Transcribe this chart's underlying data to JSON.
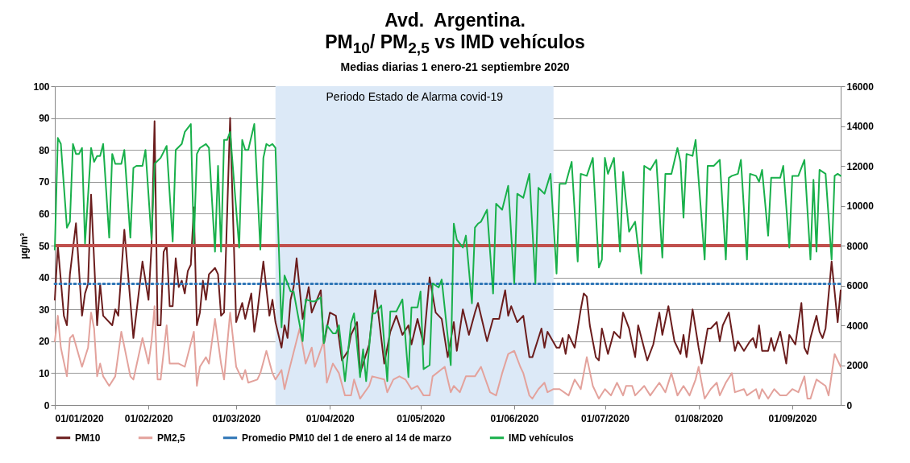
{
  "chart_data": {
    "type": "line",
    "title": "Avd.  Argentina.\nPM$_{10}$/ PM$_{2,5}$ vs IMD vehículos",
    "subtitle": "Medias diarias 1 enero-21 septiembre 2020",
    "ylabel": "µg/m³",
    "xlim": [
      "2020-01-01",
      "2020-09-17"
    ],
    "xticks": [
      {
        "value": "2020-01-01",
        "label": "01/01/2020"
      },
      {
        "value": "2020-02-01",
        "label": "01/02/2020"
      },
      {
        "value": "2020-03-01",
        "label": "01/03/2020"
      },
      {
        "value": "2020-04-01",
        "label": "01/04/2020"
      },
      {
        "value": "2020-05-01",
        "label": "01/05/2020"
      },
      {
        "value": "2020-06-01",
        "label": "01/06/2020"
      },
      {
        "value": "2020-07-01",
        "label": "01/07/2020"
      },
      {
        "value": "2020-08-01",
        "label": "01/08/2020"
      },
      {
        "value": "2020-09-01",
        "label": "01/09/2020"
      }
    ],
    "ylim": [
      0,
      100
    ],
    "yticks": [
      0,
      10,
      20,
      30,
      40,
      50,
      60,
      70,
      80,
      90,
      100
    ],
    "y2lim": [
      0,
      16000
    ],
    "y2ticks": [
      0,
      2000,
      4000,
      6000,
      8000,
      10000,
      12000,
      14000,
      16000
    ],
    "grid": "y",
    "legend": "bottom",
    "bands": [
      {
        "axis": "x",
        "from": "2020-03-14",
        "to": "2020-06-14",
        "label": "Periodo  Estado de Alarma covid-19",
        "color": "#dce9f7"
      }
    ],
    "ref_lines": [
      {
        "axis": "y",
        "value": 50,
        "color": "#c0504d"
      }
    ],
    "series": [
      {
        "name": "PM10",
        "color": "#6b1d1d",
        "x": [
          "2020-01-01",
          "2020-01-02",
          "2020-01-04",
          "2020-01-05",
          "2020-01-06",
          "2020-01-08",
          "2020-01-10",
          "2020-01-11",
          "2020-01-12",
          "2020-01-13",
          "2020-01-15",
          "2020-01-16",
          "2020-01-17",
          "2020-01-20",
          "2020-01-21",
          "2020-01-22",
          "2020-01-24",
          "2020-01-27",
          "2020-01-30",
          "2020-02-01",
          "2020-02-02",
          "2020-02-03",
          "2020-02-04",
          "2020-02-05",
          "2020-02-06",
          "2020-02-07",
          "2020-02-08",
          "2020-02-09",
          "2020-02-10",
          "2020-02-11",
          "2020-02-12",
          "2020-02-13",
          "2020-02-14",
          "2020-02-15",
          "2020-02-16",
          "2020-02-17",
          "2020-02-18",
          "2020-02-19",
          "2020-02-20",
          "2020-02-21",
          "2020-02-23",
          "2020-02-24",
          "2020-02-25",
          "2020-02-26",
          "2020-02-28",
          "2020-03-01",
          "2020-03-03",
          "2020-03-04",
          "2020-03-06",
          "2020-03-07",
          "2020-03-08",
          "2020-03-10",
          "2020-03-12",
          "2020-03-13",
          "2020-03-14",
          "2020-03-16",
          "2020-03-17",
          "2020-03-18",
          "2020-03-19",
          "2020-03-20",
          "2020-03-21",
          "2020-03-23",
          "2020-03-25",
          "2020-03-26",
          "2020-03-29",
          "2020-03-30",
          "2020-04-01",
          "2020-04-03",
          "2020-04-05",
          "2020-04-07",
          "2020-04-08",
          "2020-04-10",
          "2020-04-11",
          "2020-04-14",
          "2020-04-16",
          "2020-04-17",
          "2020-04-19",
          "2020-04-21",
          "2020-04-23",
          "2020-04-25",
          "2020-04-27",
          "2020-04-28",
          "2020-04-30",
          "2020-05-02",
          "2020-05-04",
          "2020-05-06",
          "2020-05-08",
          "2020-05-10",
          "2020-05-12",
          "2020-05-13",
          "2020-05-15",
          "2020-05-17",
          "2020-05-19",
          "2020-05-20",
          "2020-05-23",
          "2020-05-25",
          "2020-05-27",
          "2020-05-29",
          "2020-05-30",
          "2020-05-31",
          "2020-06-02",
          "2020-06-04",
          "2020-06-06",
          "2020-06-07",
          "2020-06-10",
          "2020-06-11",
          "2020-06-12",
          "2020-06-15",
          "2020-06-16",
          "2020-06-17",
          "2020-06-18",
          "2020-06-19",
          "2020-06-21",
          "2020-06-23",
          "2020-06-24",
          "2020-06-25",
          "2020-06-26",
          "2020-06-28",
          "2020-06-29",
          "2020-06-30",
          "2020-07-02",
          "2020-07-04",
          "2020-07-06",
          "2020-07-07",
          "2020-07-09",
          "2020-07-11",
          "2020-07-12",
          "2020-07-15",
          "2020-07-17",
          "2020-07-19",
          "2020-07-20",
          "2020-07-22",
          "2020-07-24",
          "2020-07-26",
          "2020-07-27",
          "2020-07-28",
          "2020-07-30",
          "2020-08-01",
          "2020-08-02",
          "2020-08-04",
          "2020-08-05",
          "2020-08-07",
          "2020-08-08",
          "2020-08-09",
          "2020-08-10",
          "2020-08-11",
          "2020-08-13",
          "2020-08-14",
          "2020-08-16",
          "2020-08-18",
          "2020-08-19",
          "2020-08-20",
          "2020-08-21",
          "2020-08-22",
          "2020-08-24",
          "2020-08-25",
          "2020-08-26",
          "2020-08-28",
          "2020-08-30",
          "2020-08-31",
          "2020-09-02",
          "2020-09-04",
          "2020-09-05",
          "2020-09-06",
          "2020-09-07",
          "2020-09-09",
          "2020-09-10",
          "2020-09-11",
          "2020-09-12",
          "2020-09-14",
          "2020-09-16",
          "2020-09-17"
        ],
        "values": [
          33,
          50,
          28,
          25,
          41,
          57,
          28,
          35,
          38,
          66,
          25,
          38,
          28,
          25,
          30,
          28,
          55,
          21,
          45,
          33,
          50,
          89,
          25,
          25,
          48,
          50,
          31,
          31,
          46,
          37,
          39,
          35,
          42,
          44,
          62,
          25,
          29,
          39,
          33,
          41,
          43,
          41,
          28,
          29,
          90,
          26,
          32,
          27,
          35,
          23,
          29,
          45,
          28,
          33,
          26,
          18,
          25,
          21,
          33,
          37,
          46,
          27,
          37,
          29,
          36,
          19,
          29,
          28,
          14,
          17,
          22,
          26,
          10,
          19,
          36,
          29,
          13,
          23,
          28,
          22,
          25,
          19,
          27,
          19,
          40,
          29,
          27,
          15,
          26,
          17,
          30,
          22,
          29,
          32,
          20,
          27,
          27,
          36,
          28,
          31,
          26,
          28,
          15,
          15,
          24,
          18,
          23,
          18,
          18,
          21,
          16,
          22,
          18,
          30,
          35,
          34,
          25,
          15,
          14,
          24,
          16,
          23,
          21,
          29,
          24,
          15,
          25,
          14,
          19,
          29,
          22,
          31,
          20,
          16,
          22,
          15,
          30,
          18,
          13,
          24,
          24,
          26,
          20,
          25,
          27,
          29,
          17,
          20,
          17,
          20,
          21,
          18,
          25,
          17,
          17,
          21,
          17,
          23,
          13,
          22,
          19,
          32,
          18,
          16,
          21,
          28,
          23,
          21,
          24,
          45,
          26,
          36
        ]
      },
      {
        "name": "PM2,5",
        "color": "#e3a29c",
        "x": [
          "2020-01-01",
          "2020-01-02",
          "2020-01-03",
          "2020-01-05",
          "2020-01-06",
          "2020-01-07",
          "2020-01-10",
          "2020-01-12",
          "2020-01-13",
          "2020-01-14",
          "2020-01-15",
          "2020-01-16",
          "2020-01-17",
          "2020-01-19",
          "2020-01-21",
          "2020-01-23",
          "2020-01-26",
          "2020-01-27",
          "2020-01-30",
          "2020-02-01",
          "2020-02-02",
          "2020-02-03",
          "2020-02-04",
          "2020-02-05",
          "2020-02-07",
          "2020-02-08",
          "2020-02-11",
          "2020-02-13",
          "2020-02-16",
          "2020-02-17",
          "2020-02-18",
          "2020-02-20",
          "2020-02-21",
          "2020-02-23",
          "2020-02-25",
          "2020-02-26",
          "2020-02-28",
          "2020-03-01",
          "2020-03-03",
          "2020-03-04",
          "2020-03-05",
          "2020-03-08",
          "2020-03-09",
          "2020-03-11",
          "2020-03-13",
          "2020-03-14",
          "2020-03-16",
          "2020-03-17",
          "2020-03-18",
          "2020-03-22",
          "2020-03-24",
          "2020-03-26",
          "2020-03-27",
          "2020-03-30",
          "2020-03-31",
          "2020-04-02",
          "2020-04-04",
          "2020-04-06",
          "2020-04-08",
          "2020-04-09",
          "2020-04-11",
          "2020-04-14",
          "2020-04-15",
          "2020-04-19",
          "2020-04-20",
          "2020-04-22",
          "2020-04-24",
          "2020-04-26",
          "2020-04-28",
          "2020-04-30",
          "2020-05-02",
          "2020-05-04",
          "2020-05-05",
          "2020-05-09",
          "2020-05-11",
          "2020-05-12",
          "2020-05-14",
          "2020-05-16",
          "2020-05-19",
          "2020-05-21",
          "2020-05-24",
          "2020-05-26",
          "2020-05-28",
          "2020-05-30",
          "2020-06-01",
          "2020-06-03",
          "2020-06-04",
          "2020-06-06",
          "2020-06-07",
          "2020-06-09",
          "2020-06-11",
          "2020-06-12",
          "2020-06-14",
          "2020-06-16",
          "2020-06-19",
          "2020-06-21",
          "2020-06-23",
          "2020-06-25",
          "2020-06-27",
          "2020-06-29",
          "2020-07-01",
          "2020-07-03",
          "2020-07-05",
          "2020-07-07",
          "2020-07-08",
          "2020-07-10",
          "2020-07-11",
          "2020-07-14",
          "2020-07-16",
          "2020-07-19",
          "2020-07-21",
          "2020-07-23",
          "2020-07-25",
          "2020-07-27",
          "2020-07-29",
          "2020-07-31",
          "2020-08-01",
          "2020-08-03",
          "2020-08-05",
          "2020-08-07",
          "2020-08-08",
          "2020-08-10",
          "2020-08-12",
          "2020-08-13",
          "2020-08-16",
          "2020-08-17",
          "2020-08-20",
          "2020-08-21",
          "2020-08-22",
          "2020-08-24",
          "2020-08-26",
          "2020-08-28",
          "2020-08-30",
          "2020-09-01",
          "2020-09-03",
          "2020-09-05",
          "2020-09-06",
          "2020-09-07",
          "2020-09-09",
          "2020-09-12",
          "2020-09-13",
          "2020-09-15",
          "2020-09-17"
        ],
        "values": [
          20,
          28,
          18,
          9,
          21,
          22,
          12,
          18,
          29,
          24,
          9,
          13,
          9,
          6,
          9,
          23,
          9,
          8,
          21,
          13,
          20,
          31,
          8,
          8,
          25,
          13,
          13,
          12,
          23,
          6,
          12,
          15,
          13,
          27,
          13,
          8,
          29,
          12,
          8,
          11,
          7,
          8,
          10,
          17,
          10,
          8,
          11,
          5,
          9,
          24,
          13,
          18,
          12,
          20,
          7,
          13,
          10,
          3,
          3,
          8,
          2,
          6,
          9,
          8,
          4,
          8,
          9,
          8,
          5,
          6,
          3,
          3,
          9,
          12,
          4,
          6,
          4,
          9,
          9,
          12,
          4,
          3,
          10,
          16,
          17,
          12,
          10,
          3,
          2,
          5,
          7,
          4,
          5,
          5,
          3,
          8,
          5,
          15,
          6,
          2,
          5,
          3,
          7,
          3,
          6,
          6,
          3,
          6,
          3,
          7,
          4,
          10,
          3,
          6,
          3,
          8,
          12,
          2,
          5,
          7,
          3,
          7,
          10,
          4,
          5,
          3,
          5,
          2,
          5,
          2,
          5,
          3,
          3,
          5,
          4,
          9,
          2,
          2,
          8,
          6,
          3,
          16,
          12
        ]
      },
      {
        "name": "Promedio PM10 del 1 de enero al 14 de marzo",
        "color": "#2e75b6",
        "type": "line",
        "line_style": "dotted",
        "x": [
          "2020-01-01",
          "2020-09-17"
        ],
        "values": [
          38,
          38
        ]
      },
      {
        "name": "IMD vehículos",
        "color": "#19b04b",
        "axis": "y2",
        "x": [
          "2020-01-01",
          "2020-01-02",
          "2020-01-03",
          "2020-01-05",
          "2020-01-06",
          "2020-01-07",
          "2020-01-08",
          "2020-01-09",
          "2020-01-10",
          "2020-01-11",
          "2020-01-13",
          "2020-01-14",
          "2020-01-15",
          "2020-01-16",
          "2020-01-17",
          "2020-01-19",
          "2020-01-20",
          "2020-01-21",
          "2020-01-23",
          "2020-01-24",
          "2020-01-26",
          "2020-01-27",
          "2020-01-28",
          "2020-01-30",
          "2020-01-31",
          "2020-02-02",
          "2020-02-03",
          "2020-02-05",
          "2020-02-07",
          "2020-02-09",
          "2020-02-10",
          "2020-02-12",
          "2020-02-13",
          "2020-02-15",
          "2020-02-16",
          "2020-02-17",
          "2020-02-18",
          "2020-02-20",
          "2020-02-21",
          "2020-02-23",
          "2020-02-24",
          "2020-02-25",
          "2020-02-26",
          "2020-02-27",
          "2020-02-28",
          "2020-03-02",
          "2020-03-03",
          "2020-03-04",
          "2020-03-05",
          "2020-03-07",
          "2020-03-09",
          "2020-03-10",
          "2020-03-11",
          "2020-03-12",
          "2020-03-13",
          "2020-03-14",
          "2020-03-16",
          "2020-03-17",
          "2020-03-19",
          "2020-03-20",
          "2020-03-23",
          "2020-03-24",
          "2020-03-26",
          "2020-03-27",
          "2020-03-29",
          "2020-03-30",
          "2020-03-31",
          "2020-04-02",
          "2020-04-03",
          "2020-04-04",
          "2020-04-06",
          "2020-04-08",
          "2020-04-09",
          "2020-04-11",
          "2020-04-12",
          "2020-04-13",
          "2020-04-15",
          "2020-04-16",
          "2020-04-18",
          "2020-04-20",
          "2020-04-21",
          "2020-04-23",
          "2020-04-25",
          "2020-04-27",
          "2020-04-28",
          "2020-04-30",
          "2020-05-01",
          "2020-05-02",
          "2020-05-04",
          "2020-05-05",
          "2020-05-07",
          "2020-05-08",
          "2020-05-11",
          "2020-05-12",
          "2020-05-13",
          "2020-05-15",
          "2020-05-16",
          "2020-05-18",
          "2020-05-19",
          "2020-05-20",
          "2020-05-21",
          "2020-05-23",
          "2020-05-25",
          "2020-05-26",
          "2020-05-28",
          "2020-05-30",
          "2020-06-01",
          "2020-06-02",
          "2020-06-04",
          "2020-06-06",
          "2020-06-08",
          "2020-06-09",
          "2020-06-11",
          "2020-06-13",
          "2020-06-15",
          "2020-06-16",
          "2020-06-18",
          "2020-06-20",
          "2020-06-22",
          "2020-06-23",
          "2020-06-25",
          "2020-06-27",
          "2020-06-29",
          "2020-06-30",
          "2020-07-01",
          "2020-07-02",
          "2020-07-04",
          "2020-07-06",
          "2020-07-07",
          "2020-07-09",
          "2020-07-11",
          "2020-07-13",
          "2020-07-14",
          "2020-07-16",
          "2020-07-18",
          "2020-07-20",
          "2020-07-21",
          "2020-07-23",
          "2020-07-25",
          "2020-07-26",
          "2020-07-27",
          "2020-07-28",
          "2020-07-30",
          "2020-07-31",
          "2020-08-03",
          "2020-08-04",
          "2020-08-06",
          "2020-08-08",
          "2020-08-10",
          "2020-08-11",
          "2020-08-12",
          "2020-08-14",
          "2020-08-15",
          "2020-08-17",
          "2020-08-18",
          "2020-08-20",
          "2020-08-21",
          "2020-08-22",
          "2020-08-24",
          "2020-08-25",
          "2020-08-26",
          "2020-08-28",
          "2020-08-29",
          "2020-08-31",
          "2020-09-01",
          "2020-09-03",
          "2020-09-05",
          "2020-09-07",
          "2020-09-08",
          "2020-09-09",
          "2020-09-10",
          "2020-09-12",
          "2020-09-14",
          "2020-09-15",
          "2020-09-16",
          "2020-09-17"
        ],
        "values": [
          7800,
          13400,
          13100,
          8900,
          9200,
          13100,
          12600,
          12600,
          12900,
          8100,
          12900,
          12200,
          12500,
          12500,
          13100,
          8400,
          12600,
          12100,
          12100,
          12800,
          8400,
          11900,
          12000,
          12000,
          12800,
          8300,
          12100,
          12400,
          13000,
          8200,
          12800,
          13100,
          13700,
          14100,
          8100,
          12600,
          12900,
          13100,
          12900,
          7700,
          12000,
          7700,
          13300,
          13300,
          13700,
          7900,
          13300,
          12800,
          12800,
          14100,
          7800,
          12400,
          13100,
          13000,
          13100,
          12900,
          3900,
          6500,
          5700,
          5700,
          3200,
          5300,
          5200,
          5200,
          5400,
          3100,
          4000,
          3600,
          3600,
          4000,
          1200,
          4100,
          4600,
          1400,
          2800,
          1200,
          4600,
          4600,
          5000,
          1200,
          4700,
          4700,
          5300,
          1400,
          4900,
          4900,
          5700,
          1800,
          2000,
          6100,
          5900,
          6300,
          2000,
          9100,
          8300,
          7900,
          8500,
          5100,
          8900,
          9100,
          9200,
          9800,
          5600,
          10100,
          9800,
          11000,
          6100,
          10600,
          10400,
          11600,
          6100,
          10900,
          10600,
          11600,
          6600,
          11100,
          11100,
          12200,
          7200,
          11600,
          11500,
          12400,
          6900,
          7300,
          12400,
          11600,
          12400,
          7700,
          11700,
          8700,
          9200,
          6600,
          12000,
          11800,
          12300,
          7400,
          11600,
          11600,
          12900,
          12200,
          9400,
          12600,
          12500,
          13300,
          7300,
          12000,
          12000,
          12300,
          7300,
          11400,
          11500,
          11600,
          12300,
          7300,
          11600,
          11500,
          11200,
          11800,
          8500,
          11400,
          11400,
          11400,
          12000,
          7900,
          11500,
          11500,
          12300,
          7300,
          11300,
          7700,
          11800,
          11600,
          7300,
          11500,
          11600,
          11500
        ]
      }
    ]
  }
}
